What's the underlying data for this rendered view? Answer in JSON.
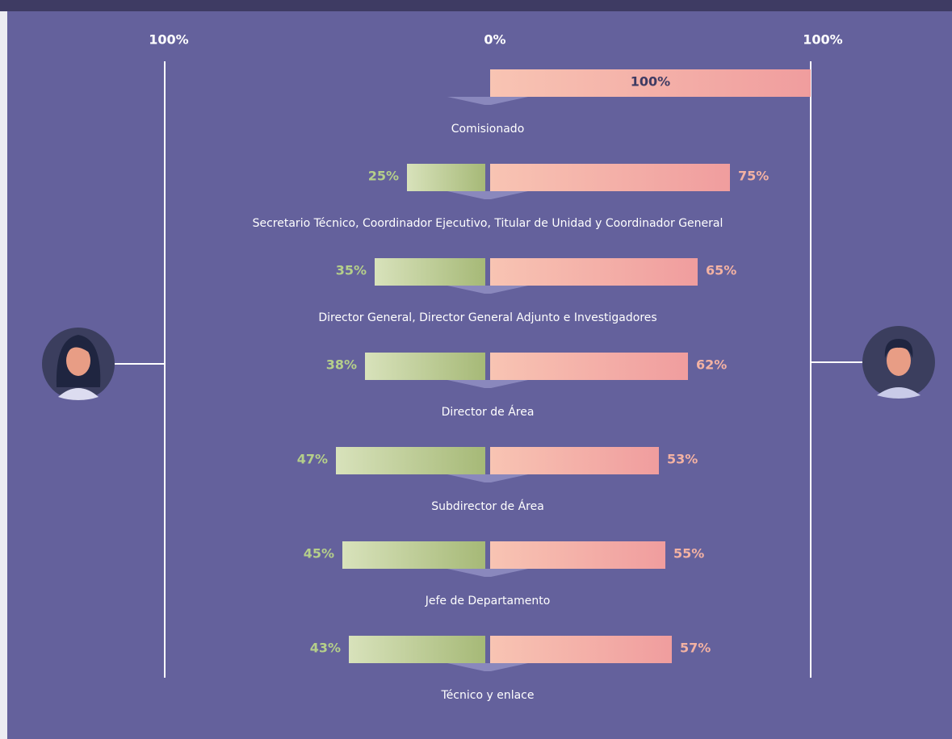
{
  "chart_data": {
    "type": "diverging_bar",
    "categories": [
      "Comisionado",
      "Secretario Técnico, Coordinador Ejecutivo, Titular de Unidad y Coordinador General",
      "Director General, Director General Adjunto e Investigadores",
      "Director de Área",
      "Subdirector de Área",
      "Jefe de Departamento",
      "Técnico y enlace"
    ],
    "series": [
      {
        "name": "Mujeres",
        "side": "left",
        "color": "#b5cf8a",
        "values": [
          null,
          25,
          35,
          38,
          47,
          45,
          43
        ],
        "value_labels": [
          null,
          "25%",
          "35%",
          "38%",
          "47%",
          "45%",
          "43%"
        ]
      },
      {
        "name": "Hombres",
        "side": "right",
        "color": "#f3b2a3",
        "values": [
          100,
          75,
          65,
          62,
          53,
          55,
          57
        ],
        "value_labels": [
          "100%",
          "75%",
          "65%",
          "62%",
          "53%",
          "55%",
          "57%"
        ]
      }
    ],
    "xlim": [
      -100,
      100
    ],
    "xticks": [
      {
        "value": -100,
        "label": "100%"
      },
      {
        "value": 0,
        "label": "0%"
      },
      {
        "value": 100,
        "label": "100%"
      }
    ]
  }
}
